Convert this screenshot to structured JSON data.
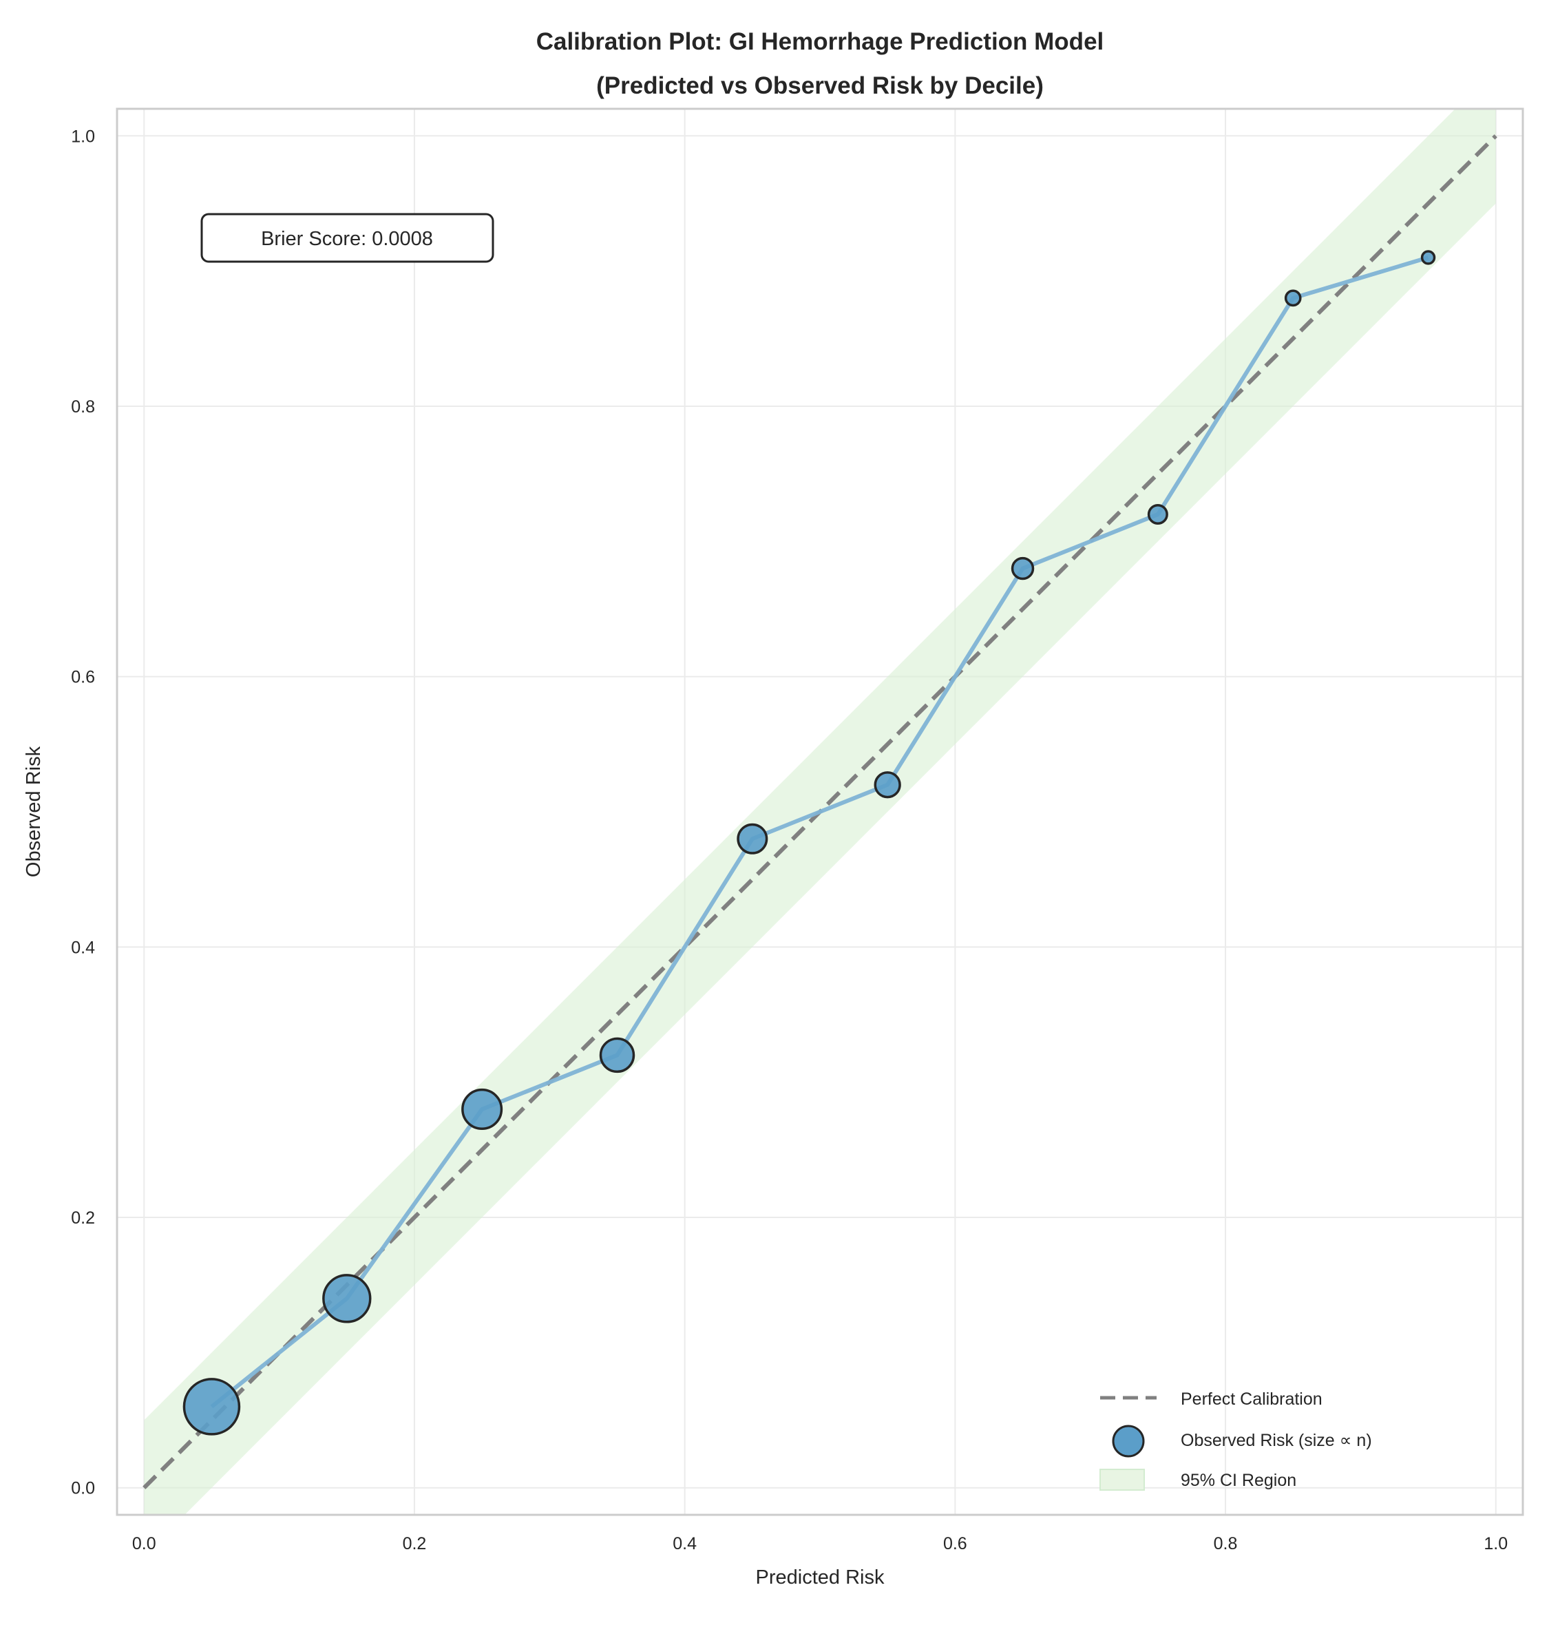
{
  "chart_data": {
    "type": "scatter",
    "title": [
      "Calibration Plot: GI Hemorrhage Prediction Model",
      "(Predicted vs Observed Risk by Decile)"
    ],
    "xlabel": "Predicted Risk",
    "ylabel": "Observed Risk",
    "xlim": [
      -0.02,
      1.02
    ],
    "ylim": [
      -0.02,
      1.02
    ],
    "xticks": [
      "0.0",
      "0.2",
      "0.4",
      "0.6",
      "0.8",
      "1.0"
    ],
    "yticks": [
      "0.0",
      "0.2",
      "0.4",
      "0.6",
      "0.8",
      "1.0"
    ],
    "grid": true,
    "legend_position": "bottom-right",
    "annotation": "Brier Score: 0.0008",
    "series": [
      {
        "name": "Perfect Calibration",
        "kind": "line",
        "style": "dashed",
        "color": "#808080",
        "x": [
          0,
          1
        ],
        "y": [
          0,
          1
        ]
      },
      {
        "name": "Observed Risk (size ∝ n)",
        "kind": "scatter+line",
        "color": "#5b9ec9",
        "edge_color": "#262626",
        "line_color": "#7fb3d5",
        "x": [
          0.05,
          0.15,
          0.25,
          0.35,
          0.45,
          0.55,
          0.65,
          0.75,
          0.85,
          0.95
        ],
        "y": [
          0.06,
          0.14,
          0.28,
          0.32,
          0.48,
          0.52,
          0.68,
          0.72,
          0.88,
          0.91
        ],
        "relative_size": [
          1.0,
          0.72,
          0.5,
          0.36,
          0.27,
          0.2,
          0.14,
          0.11,
          0.07,
          0.05
        ]
      },
      {
        "name": "95% CI Region",
        "kind": "band",
        "color": "#d9f0d3",
        "x": [
          0,
          1
        ],
        "lower_offset": -0.05,
        "upper_offset": 0.05
      }
    ]
  }
}
